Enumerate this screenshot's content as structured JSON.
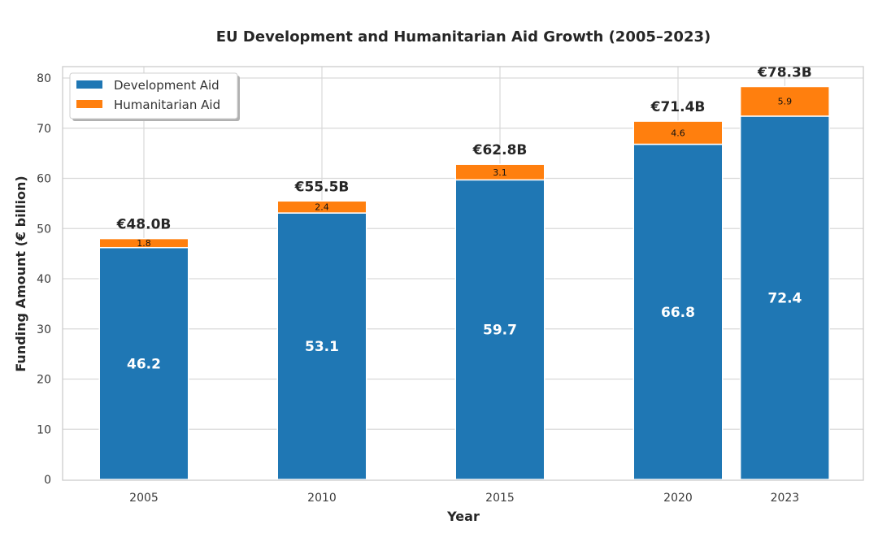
{
  "chart_data": {
    "type": "bar",
    "stacked": true,
    "title": "EU Development and Humanitarian Aid Growth (2005–2023)",
    "xlabel": "Year",
    "ylabel": "Funding Amount (€ billion)",
    "categories": [
      "2005",
      "2010",
      "2015",
      "2020",
      "2023"
    ],
    "x": [
      2005,
      2010,
      2015,
      2020,
      2023
    ],
    "series": [
      {
        "name": "Development Aid",
        "color": "#1f77b4",
        "values": [
          46.2,
          53.1,
          59.7,
          66.8,
          72.4
        ]
      },
      {
        "name": "Humanitarian Aid",
        "color": "#ff7f0e",
        "values": [
          1.8,
          2.4,
          3.1,
          4.6,
          5.9
        ]
      }
    ],
    "totals": [
      48.0,
      55.5,
      62.8,
      71.4,
      78.3
    ],
    "total_labels": [
      "€48.0B",
      "€55.5B",
      "€62.8B",
      "€71.4B",
      "€78.3B"
    ],
    "development_labels": [
      "46.2",
      "53.1",
      "59.7",
      "66.8",
      "72.4"
    ],
    "humanitarian_labels": [
      "1.8",
      "2.4",
      "3.1",
      "4.6",
      "5.9"
    ],
    "ylim": [
      0,
      80
    ],
    "xlim": [
      2002.7,
      2025.2
    ],
    "yticks": [
      0,
      10,
      20,
      30,
      40,
      50,
      60,
      70,
      80
    ],
    "ytick_labels": [
      "0",
      "10",
      "20",
      "30",
      "40",
      "50",
      "60",
      "70",
      "80"
    ],
    "xticks": [
      2005,
      2010,
      2015,
      2020,
      2023
    ],
    "xtick_labels": [
      "2005",
      "2010",
      "2015",
      "2020",
      "2023"
    ],
    "bar_width_years": 2.5,
    "grid": true,
    "legend": {
      "position": "top-left",
      "entries": [
        "Development Aid",
        "Humanitarian Aid"
      ]
    }
  }
}
